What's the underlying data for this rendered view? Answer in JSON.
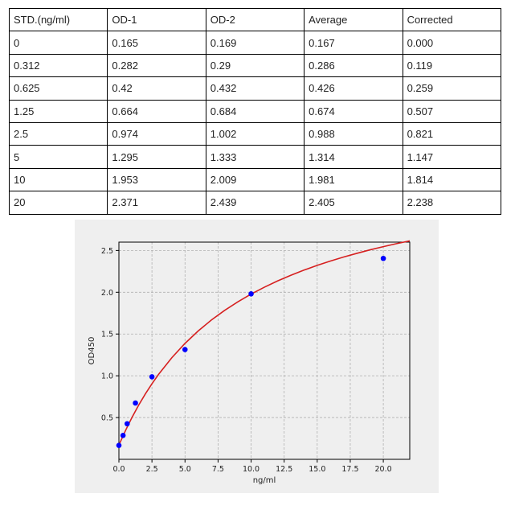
{
  "table": {
    "headers": [
      "STD.(ng/ml)",
      "OD-1",
      "OD-2",
      "Average",
      "Corrected"
    ],
    "rows": [
      [
        "0",
        "0.165",
        "0.169",
        "0.167",
        "0.000"
      ],
      [
        "0.312",
        "0.282",
        "0.29",
        "0.286",
        "0.119"
      ],
      [
        "0.625",
        "0.42",
        "0.432",
        "0.426",
        "0.259"
      ],
      [
        "1.25",
        "0.664",
        "0.684",
        "0.674",
        "0.507"
      ],
      [
        "2.5",
        "0.974",
        "1.002",
        "0.988",
        "0.821"
      ],
      [
        "5",
        "1.295",
        "1.333",
        "1.314",
        "1.147"
      ],
      [
        "10",
        "1.953",
        "2.009",
        "1.981",
        "1.814"
      ],
      [
        "20",
        "2.371",
        "2.439",
        "2.405",
        "2.238"
      ]
    ]
  },
  "chart_data": {
    "type": "scatter",
    "xlabel": "ng/ml",
    "ylabel": "OD450",
    "xlim": [
      0,
      22
    ],
    "ylim": [
      0,
      2.6
    ],
    "x_ticks": [
      "0.0",
      "2.5",
      "5.0",
      "7.5",
      "10.0",
      "12.5",
      "15.0",
      "17.5",
      "20.0"
    ],
    "y_ticks": [
      "0.5",
      "1.0",
      "1.5",
      "2.0",
      "2.5"
    ],
    "grid": true,
    "series": [
      {
        "kind": "points",
        "x": [
          0,
          0.312,
          0.625,
          1.25,
          2.5,
          5,
          10,
          20
        ],
        "y": [
          0.167,
          0.286,
          0.426,
          0.674,
          0.988,
          1.314,
          1.981,
          2.405
        ],
        "color": "#0000ff"
      },
      {
        "kind": "fit-curve",
        "x": [
          0,
          0.5,
          1,
          1.5,
          2,
          2.5,
          3,
          4,
          5,
          6,
          7,
          8,
          9,
          10,
          11,
          12,
          13,
          14,
          15,
          16,
          17,
          18,
          19,
          20,
          21,
          22
        ],
        "y": [
          0.17,
          0.345,
          0.505,
          0.65,
          0.783,
          0.905,
          1.017,
          1.216,
          1.388,
          1.537,
          1.668,
          1.783,
          1.886,
          1.978,
          2.06,
          2.135,
          2.203,
          2.265,
          2.322,
          2.374,
          2.422,
          2.466,
          2.508,
          2.546,
          2.582,
          2.615
        ],
        "color": "#d62020"
      }
    ]
  }
}
